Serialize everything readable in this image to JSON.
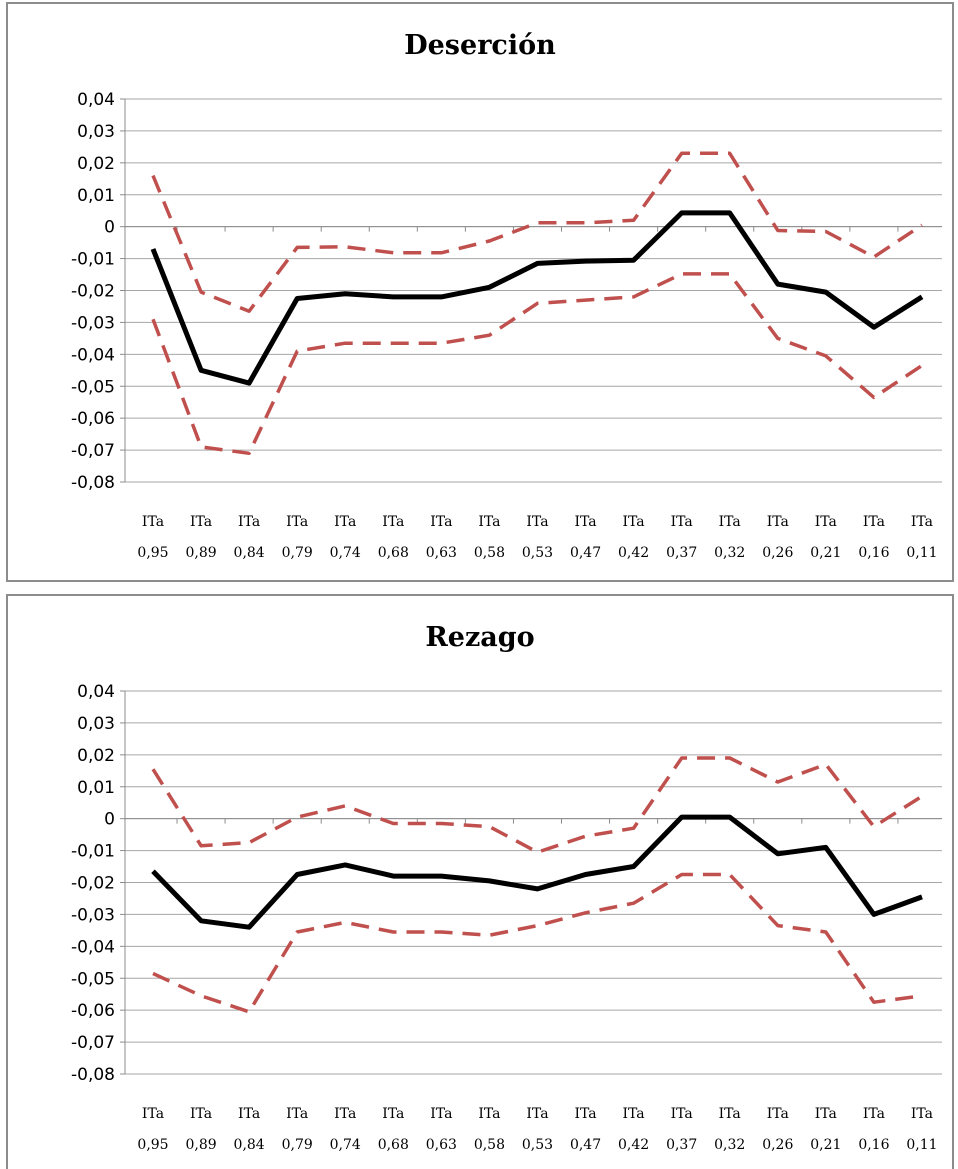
{
  "chart_data": [
    {
      "type": "line",
      "title": "Deserción",
      "xlabel": "",
      "ylabel": "",
      "ylim": [
        -0.08,
        0.04
      ],
      "yticks": [
        "0,04",
        "0,03",
        "0,02",
        "0,01",
        "0",
        "-0,01",
        "-0,02",
        "-0,03",
        "-0,04",
        "-0,05",
        "-0,06",
        "-0,07",
        "-0,08"
      ],
      "categories": [
        [
          "ITa",
          "0,95"
        ],
        [
          "ITa",
          "0,89"
        ],
        [
          "ITa",
          "0,84"
        ],
        [
          "ITa",
          "0,79"
        ],
        [
          "ITa",
          "0,74"
        ],
        [
          "ITa",
          "0,68"
        ],
        [
          "ITa",
          "0,63"
        ],
        [
          "ITa",
          "0,58"
        ],
        [
          "ITa",
          "0,53"
        ],
        [
          "ITa",
          "0,47"
        ],
        [
          "ITa",
          "0,42"
        ],
        [
          "ITa",
          "0,37"
        ],
        [
          "ITa",
          "0,32"
        ],
        [
          "ITa",
          "0,26"
        ],
        [
          "ITa",
          "0,21"
        ],
        [
          "ITa",
          "0,16"
        ],
        [
          "ITa",
          "0,11"
        ]
      ],
      "grid": true,
      "series": [
        {
          "role": "estimate",
          "color": "#000000",
          "style": "solid",
          "values": [
            -0.007,
            -0.045,
            -0.049,
            -0.0225,
            -0.021,
            -0.022,
            -0.022,
            -0.019,
            -0.0115,
            -0.0108,
            -0.0105,
            0.0043,
            0.0043,
            -0.018,
            -0.0205,
            -0.0315,
            -0.022
          ]
        },
        {
          "role": "upper-ci",
          "color": "#c0504d",
          "style": "dashed",
          "values": [
            0.016,
            -0.0205,
            -0.0265,
            -0.0065,
            -0.0063,
            -0.0082,
            -0.0082,
            -0.0045,
            0.0012,
            0.0012,
            0.002,
            0.023,
            0.023,
            -0.0012,
            -0.0015,
            -0.0095,
            0.0005
          ]
        },
        {
          "role": "lower-ci",
          "color": "#c0504d",
          "style": "dashed",
          "values": [
            -0.029,
            -0.069,
            -0.071,
            -0.039,
            -0.0365,
            -0.0365,
            -0.0365,
            -0.034,
            -0.024,
            -0.023,
            -0.022,
            -0.0148,
            -0.0148,
            -0.035,
            -0.0405,
            -0.0535,
            -0.0435
          ]
        }
      ]
    },
    {
      "type": "line",
      "title": "Rezago",
      "xlabel": "",
      "ylabel": "",
      "ylim": [
        -0.08,
        0.04
      ],
      "yticks": [
        "0,04",
        "0,03",
        "0,02",
        "0,01",
        "0",
        "-0,01",
        "-0,02",
        "-0,03",
        "-0,04",
        "-0,05",
        "-0,06",
        "-0,07",
        "-0,08"
      ],
      "categories": [
        [
          "ITa",
          "0,95"
        ],
        [
          "ITa",
          "0,89"
        ],
        [
          "ITa",
          "0,84"
        ],
        [
          "ITa",
          "0,79"
        ],
        [
          "ITa",
          "0,74"
        ],
        [
          "ITa",
          "0,68"
        ],
        [
          "ITa",
          "0,63"
        ],
        [
          "ITa",
          "0,58"
        ],
        [
          "ITa",
          "0,53"
        ],
        [
          "ITa",
          "0,47"
        ],
        [
          "ITa",
          "0,42"
        ],
        [
          "ITa",
          "0,37"
        ],
        [
          "ITa",
          "0,32"
        ],
        [
          "ITa",
          "0,26"
        ],
        [
          "ITa",
          "0,21"
        ],
        [
          "ITa",
          "0,16"
        ],
        [
          "ITa",
          "0,11"
        ]
      ],
      "grid": true,
      "series": [
        {
          "role": "estimate",
          "color": "#000000",
          "style": "solid",
          "values": [
            -0.0165,
            -0.032,
            -0.034,
            -0.0175,
            -0.0145,
            -0.018,
            -0.018,
            -0.0195,
            -0.022,
            -0.0175,
            -0.015,
            0.0005,
            0.0005,
            -0.011,
            -0.009,
            -0.03,
            -0.0245
          ]
        },
        {
          "role": "upper-ci",
          "color": "#c0504d",
          "style": "dashed",
          "values": [
            0.0155,
            -0.0085,
            -0.0075,
            0.0005,
            0.004,
            -0.0015,
            -0.0015,
            -0.0025,
            -0.0105,
            -0.0055,
            -0.003,
            0.019,
            0.019,
            0.0115,
            0.017,
            -0.0025,
            0.007
          ]
        },
        {
          "role": "lower-ci",
          "color": "#c0504d",
          "style": "dashed",
          "values": [
            -0.0485,
            -0.0555,
            -0.0605,
            -0.0355,
            -0.0325,
            -0.0355,
            -0.0355,
            -0.0365,
            -0.0335,
            -0.0295,
            -0.0265,
            -0.0175,
            -0.0175,
            -0.0335,
            -0.0355,
            -0.0575,
            -0.0555
          ]
        }
      ]
    }
  ]
}
